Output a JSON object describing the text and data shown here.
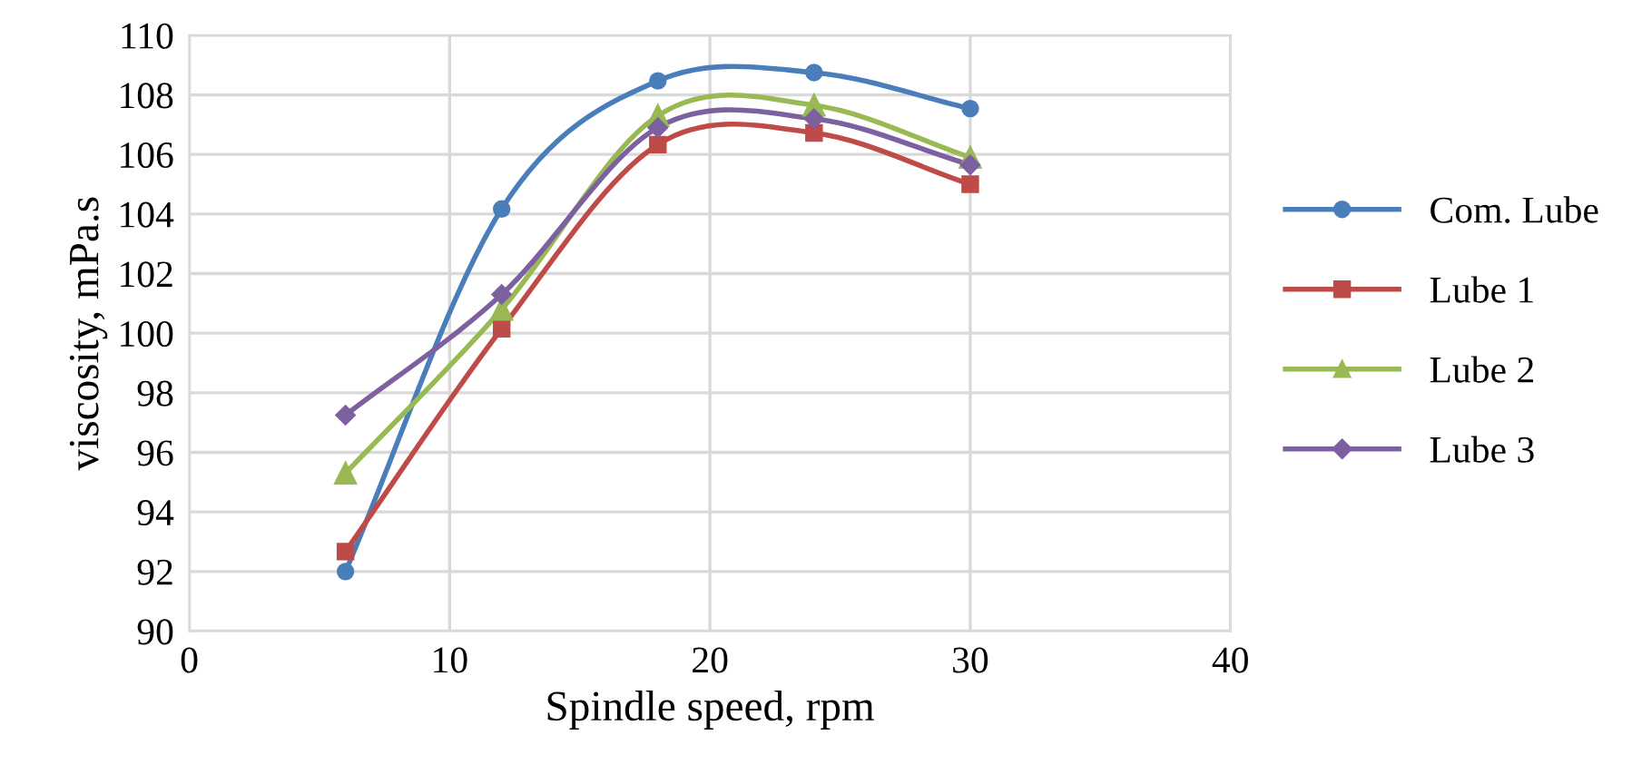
{
  "chart_data": {
    "type": "line",
    "xlabel": "Spindle speed, rpm",
    "ylabel": "viscosity, mPa.s",
    "x": [
      6,
      12,
      18,
      24,
      30
    ],
    "series": [
      {
        "name": "Com. Lube",
        "color": "#4a7ebb",
        "marker": "circle",
        "values": [
          92.0,
          104.17,
          108.47,
          108.75,
          107.54
        ]
      },
      {
        "name": "Lube 1",
        "color": "#be4b48",
        "marker": "square",
        "values": [
          92.67,
          100.15,
          106.33,
          106.72,
          105.0
        ]
      },
      {
        "name": "Lube 2",
        "color": "#98b954",
        "marker": "triangle",
        "values": [
          95.3,
          100.8,
          107.3,
          107.65,
          105.9
        ]
      },
      {
        "name": "Lube 3",
        "color": "#7d60a0",
        "marker": "diamond",
        "values": [
          97.25,
          101.3,
          106.9,
          107.2,
          105.65
        ]
      }
    ],
    "xlim": [
      0,
      40
    ],
    "xticks": [
      0,
      10,
      20,
      30,
      40
    ],
    "ylim": [
      90,
      110
    ],
    "yticks": [
      90,
      92,
      94,
      96,
      98,
      100,
      102,
      104,
      106,
      108,
      110
    ],
    "grid": true,
    "legend": "right",
    "line_style": "solid"
  }
}
